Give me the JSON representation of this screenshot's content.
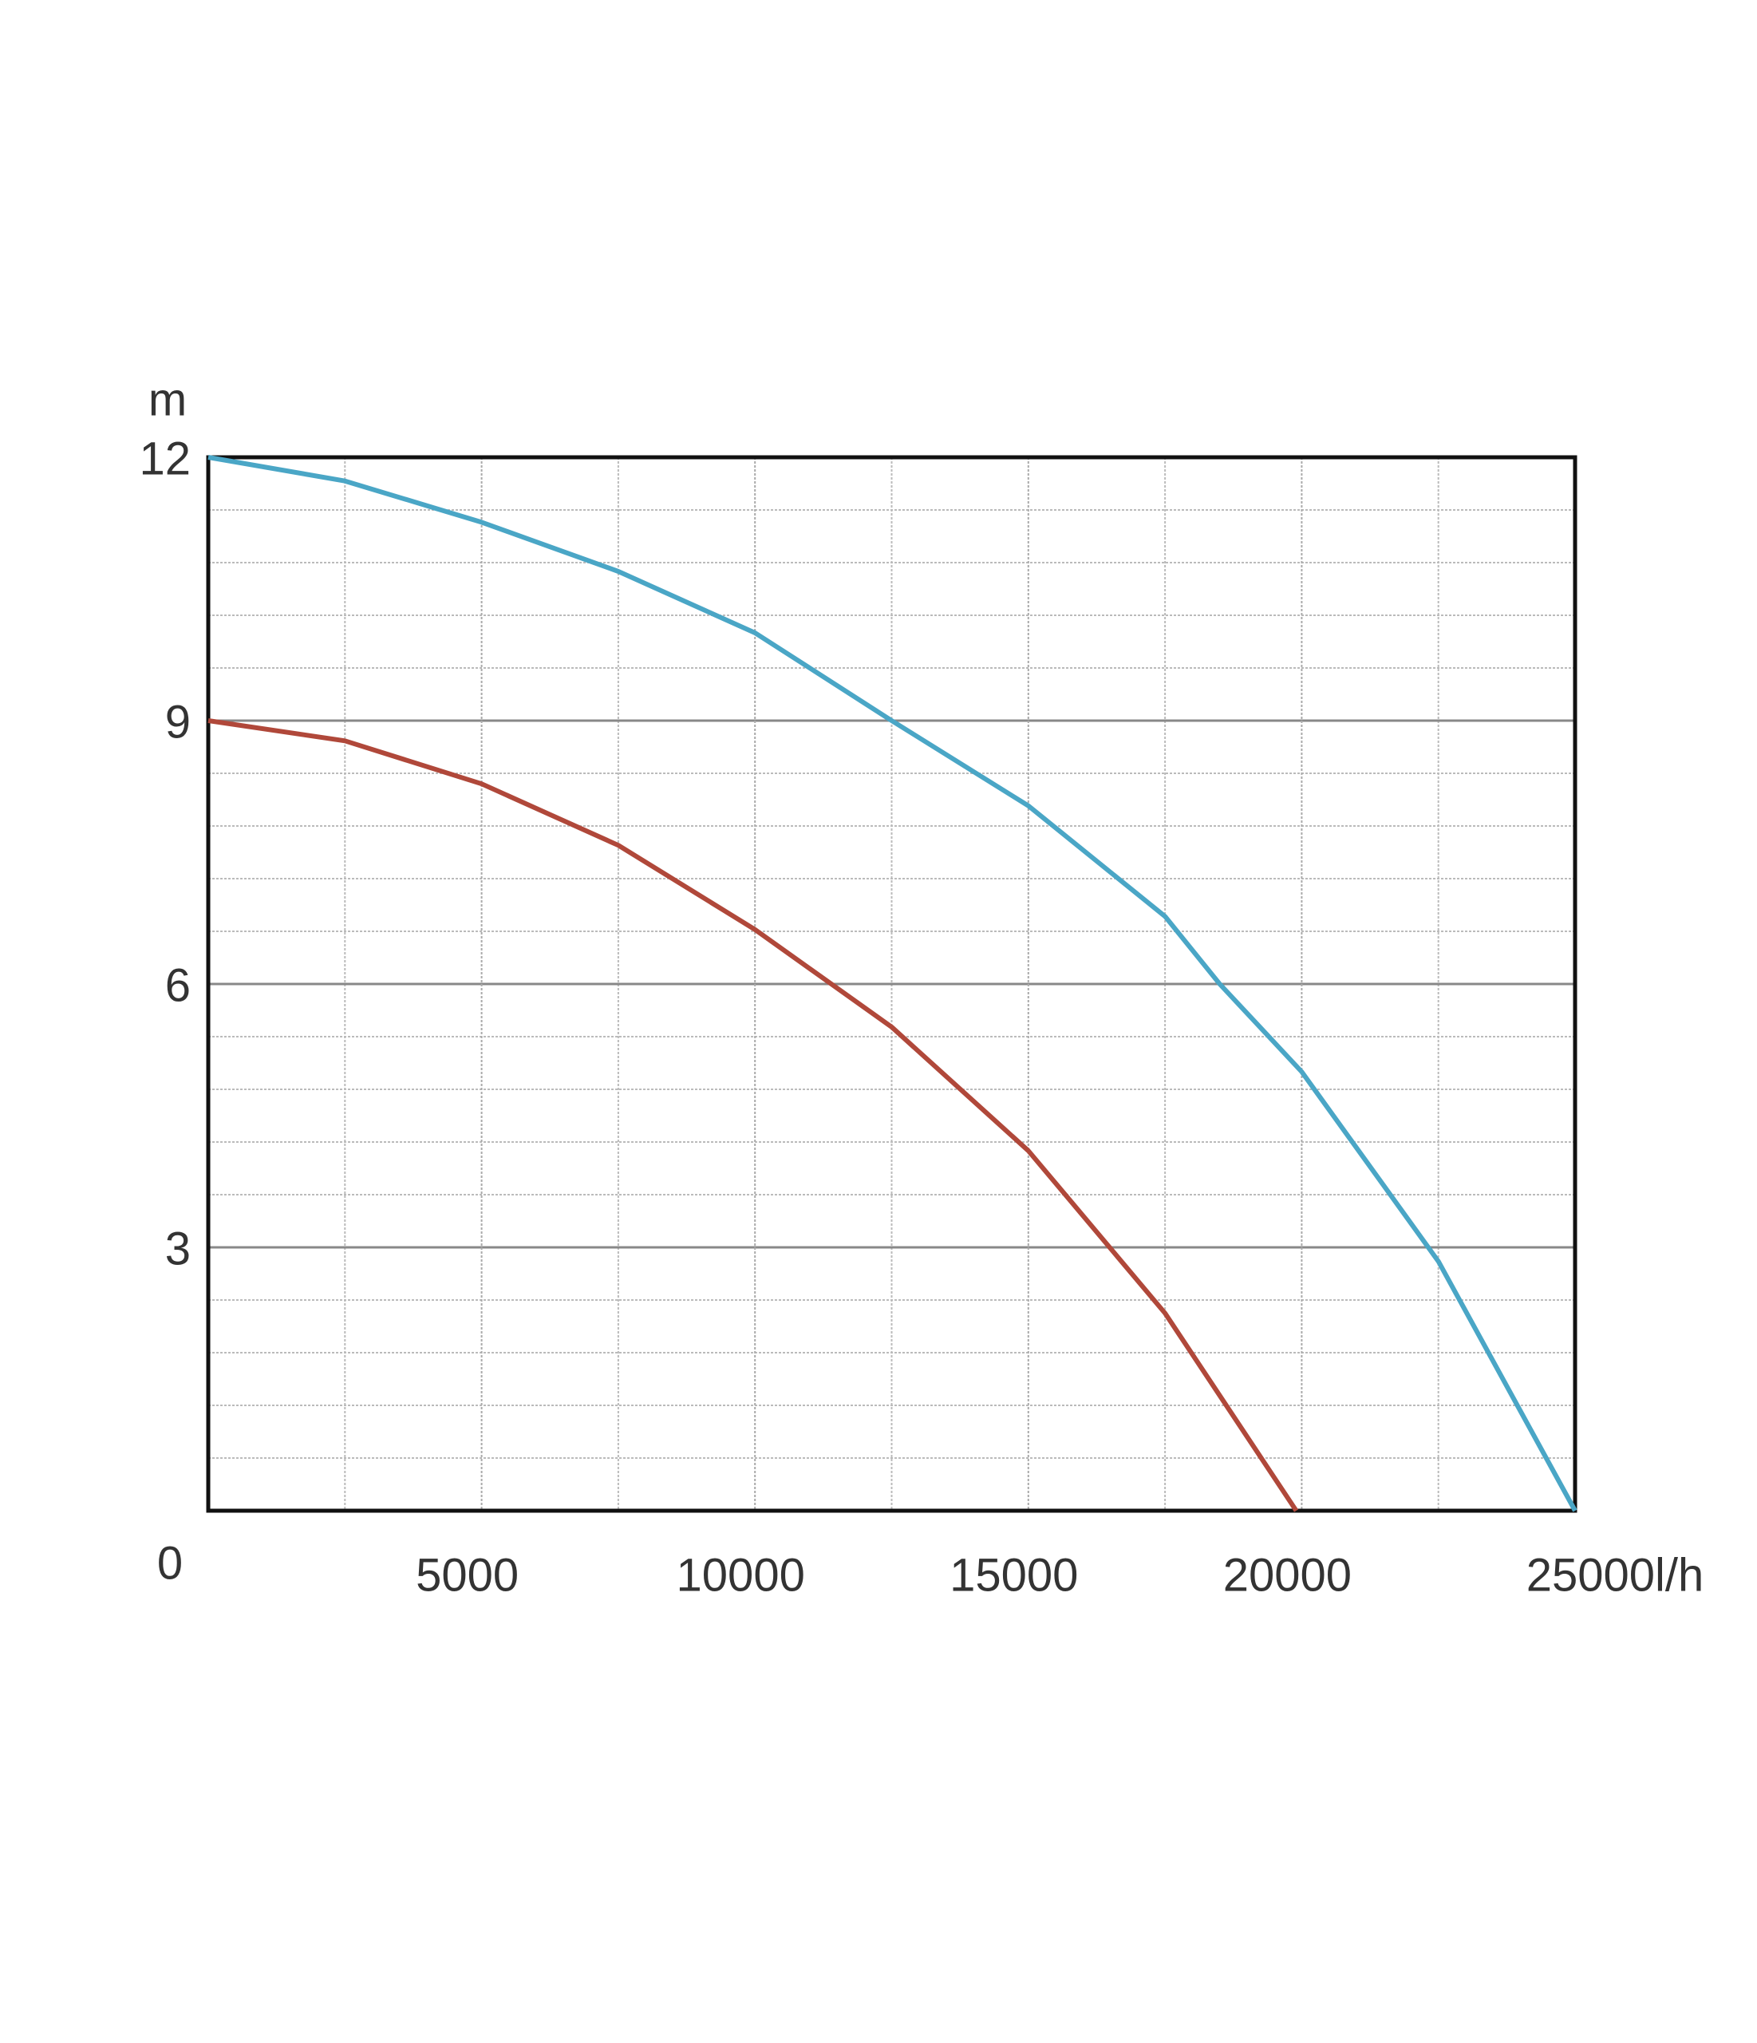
{
  "chart_data": {
    "type": "line",
    "y_label": "m",
    "xlim": [
      0,
      25000
    ],
    "ylim": [
      0,
      12
    ],
    "xticks": [
      0,
      5000,
      10000,
      15000,
      20000,
      {
        "value": 25000,
        "label": "25000l/h"
      }
    ],
    "yticks": [
      3,
      6,
      9,
      12
    ],
    "x_minor_grid": [
      2500,
      7500,
      12500,
      17500,
      22500
    ],
    "y_minor_grid": [
      0.6,
      1.2,
      1.8,
      2.4,
      3.6,
      4.2,
      4.8,
      5.4,
      6.6,
      7.2,
      7.8,
      8.4,
      9.6,
      10.2,
      10.8,
      11.4
    ],
    "grid": true,
    "series": [
      {
        "color": "#4aa6c6",
        "x": [
          0,
          2500,
          5000,
          7500,
          10000,
          12500,
          15000,
          17500,
          18500,
          20000,
          22500,
          25000
        ],
        "values": [
          12,
          11.73,
          11.26,
          10.7,
          10.0,
          9.0,
          8.03,
          6.77,
          6.0,
          5.0,
          2.84,
          0
        ]
      },
      {
        "color": "#b0483a",
        "x": [
          0,
          2500,
          5000,
          7500,
          10000,
          12500,
          15000,
          17500,
          19900
        ],
        "values": [
          9,
          8.77,
          8.28,
          7.58,
          6.62,
          5.51,
          4.1,
          2.25,
          0
        ]
      }
    ]
  }
}
